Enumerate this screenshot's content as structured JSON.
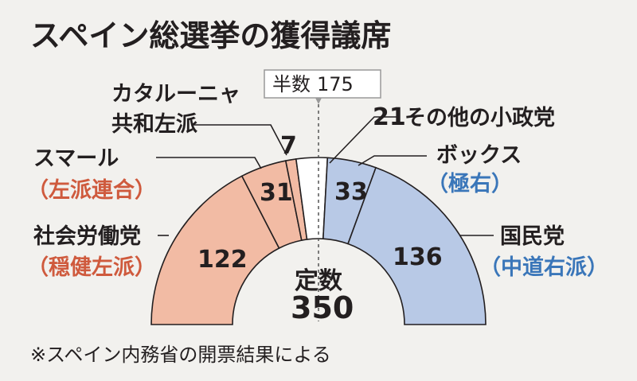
{
  "chart_data": {
    "type": "parliament-semicircle",
    "title": "スペイン総選挙の獲得議席",
    "total_label": "定数",
    "total_seats": 350,
    "majority_label": "半数",
    "majority_seats": 175,
    "source_note": "※スペイン内務省の開票結果による",
    "parties": [
      {
        "key": "psoe",
        "name": "社会労働党",
        "descriptor": "（穏健左派）",
        "seats": 122,
        "color": "#f2bba4",
        "descriptor_color": "#cf5a3d"
      },
      {
        "key": "sumar",
        "name": "スマール",
        "descriptor": "（左派連合）",
        "seats": 31,
        "color": "#f2bba4",
        "descriptor_color": "#cf5a3d"
      },
      {
        "key": "erc",
        "name": "カタルーニャ共和左派",
        "name_lines": [
          "カタルーニャ",
          "共和左派"
        ],
        "descriptor": "",
        "seats": 7,
        "color": "#f2bba4",
        "descriptor_color": "#cf5a3d"
      },
      {
        "key": "others",
        "name": "その他の小政党",
        "descriptor": "",
        "seats": 21,
        "color": "#ffffff",
        "descriptor_color": "#231f20"
      },
      {
        "key": "vox",
        "name": "ボックス",
        "descriptor": "（極右）",
        "seats": 33,
        "color": "#b8c9e6",
        "descriptor_color": "#3a76b9"
      },
      {
        "key": "pp",
        "name": "国民党",
        "descriptor": "（中道右派）",
        "seats": 136,
        "color": "#b8c9e6",
        "descriptor_color": "#3a76b9"
      }
    ]
  }
}
